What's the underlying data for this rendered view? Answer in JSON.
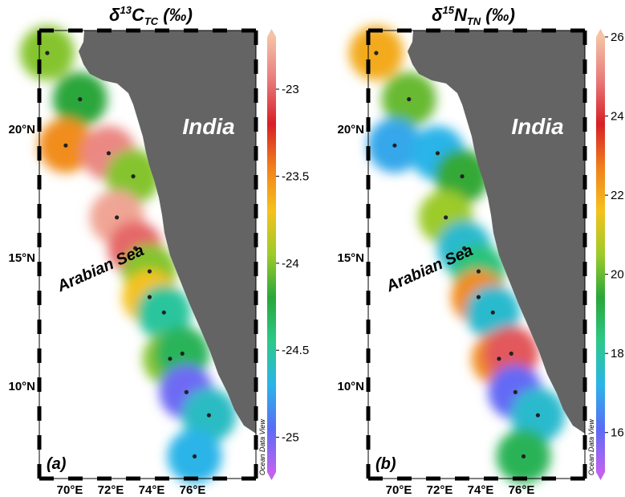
{
  "panels": [
    {
      "id": "a",
      "title_main": "δ",
      "title_sup": "13",
      "title_letter": "C",
      "title_sub": "TC",
      "title_unit": "(‰)",
      "panel_label": "(a)",
      "region_label_india": "India",
      "region_label_sea": "Arabian Sea",
      "watermark": "Ocean Data View",
      "x_ticks": [
        "70°E",
        "72°E",
        "74°E",
        "76°E"
      ],
      "y_ticks": [
        "20°N",
        "15°N",
        "10°N"
      ],
      "colorbar": {
        "ticks": [
          "-23",
          "-23.5",
          "-24",
          "-24.5",
          "-25"
        ],
        "range": [
          -25.2,
          -22.7
        ],
        "colors": [
          "#c061f0",
          "#5a6cf5",
          "#2bb4e8",
          "#2cc98a",
          "#2aa63a",
          "#9ccb2a",
          "#f5c21c",
          "#f0801c",
          "#d81f26",
          "#e87a7a",
          "#f5c2a5"
        ]
      },
      "stations": [
        {
          "lon": 68.9,
          "lat": 23.0,
          "value": -24.0
        },
        {
          "lon": 70.5,
          "lat": 21.2,
          "value": -24.2
        },
        {
          "lon": 69.8,
          "lat": 19.4,
          "value": -23.5
        },
        {
          "lon": 71.9,
          "lat": 19.1,
          "value": -22.9
        },
        {
          "lon": 73.1,
          "lat": 18.2,
          "value": -24.0
        },
        {
          "lon": 72.3,
          "lat": 16.6,
          "value": -22.8
        },
        {
          "lon": 73.2,
          "lat": 15.4,
          "value": -23.0
        },
        {
          "lon": 73.9,
          "lat": 14.5,
          "value": -24.0
        },
        {
          "lon": 73.9,
          "lat": 13.5,
          "value": -23.7
        },
        {
          "lon": 74.6,
          "lat": 12.9,
          "value": -24.5
        },
        {
          "lon": 74.9,
          "lat": 11.1,
          "value": -24.0
        },
        {
          "lon": 75.5,
          "lat": 11.3,
          "value": -24.3
        },
        {
          "lon": 75.7,
          "lat": 9.8,
          "value": -25.0
        },
        {
          "lon": 76.8,
          "lat": 8.9,
          "value": -24.6
        },
        {
          "lon": 76.1,
          "lat": 7.3,
          "value": -24.7
        }
      ]
    },
    {
      "id": "b",
      "title_main": "δ",
      "title_sup": "15",
      "title_letter": "N",
      "title_sub": "TN",
      "title_unit": "(‰)",
      "panel_label": "(b)",
      "region_label_india": "India",
      "region_label_sea": "Arabian Sea",
      "watermark": "Ocean Data View",
      "x_ticks": [
        "70°E",
        "72°E",
        "74°E",
        "76°E"
      ],
      "y_ticks": [
        "20°N",
        "15°N",
        "10°N"
      ],
      "colorbar": {
        "ticks": [
          "26",
          "24",
          "22",
          "20",
          "18",
          "16"
        ],
        "range": [
          15.0,
          26.0
        ],
        "colors": [
          "#c061f0",
          "#5a6cf5",
          "#2bb4e8",
          "#2cc98a",
          "#2aa63a",
          "#9ccb2a",
          "#f5c21c",
          "#f0801c",
          "#d81f26",
          "#e87a7a",
          "#f5c2a5"
        ]
      },
      "stations": [
        {
          "lon": 68.9,
          "lat": 23.0,
          "value": 22.0
        },
        {
          "lon": 70.5,
          "lat": 21.2,
          "value": 20.0
        },
        {
          "lon": 69.8,
          "lat": 19.4,
          "value": 17.0
        },
        {
          "lon": 71.9,
          "lat": 19.1,
          "value": 17.2
        },
        {
          "lon": 73.1,
          "lat": 18.2,
          "value": 19.5
        },
        {
          "lon": 72.3,
          "lat": 16.6,
          "value": 20.5
        },
        {
          "lon": 73.2,
          "lat": 15.4,
          "value": 17.5
        },
        {
          "lon": 73.9,
          "lat": 14.5,
          "value": 18.5
        },
        {
          "lon": 73.9,
          "lat": 13.5,
          "value": 22.5
        },
        {
          "lon": 74.6,
          "lat": 12.9,
          "value": 17.5
        },
        {
          "lon": 74.9,
          "lat": 11.1,
          "value": 22.5
        },
        {
          "lon": 75.5,
          "lat": 11.3,
          "value": 24.5
        },
        {
          "lon": 75.7,
          "lat": 9.8,
          "value": 16.0
        },
        {
          "lon": 76.8,
          "lat": 8.9,
          "value": 17.5
        },
        {
          "lon": 76.1,
          "lat": 7.3,
          "value": 19.0
        }
      ]
    }
  ]
}
